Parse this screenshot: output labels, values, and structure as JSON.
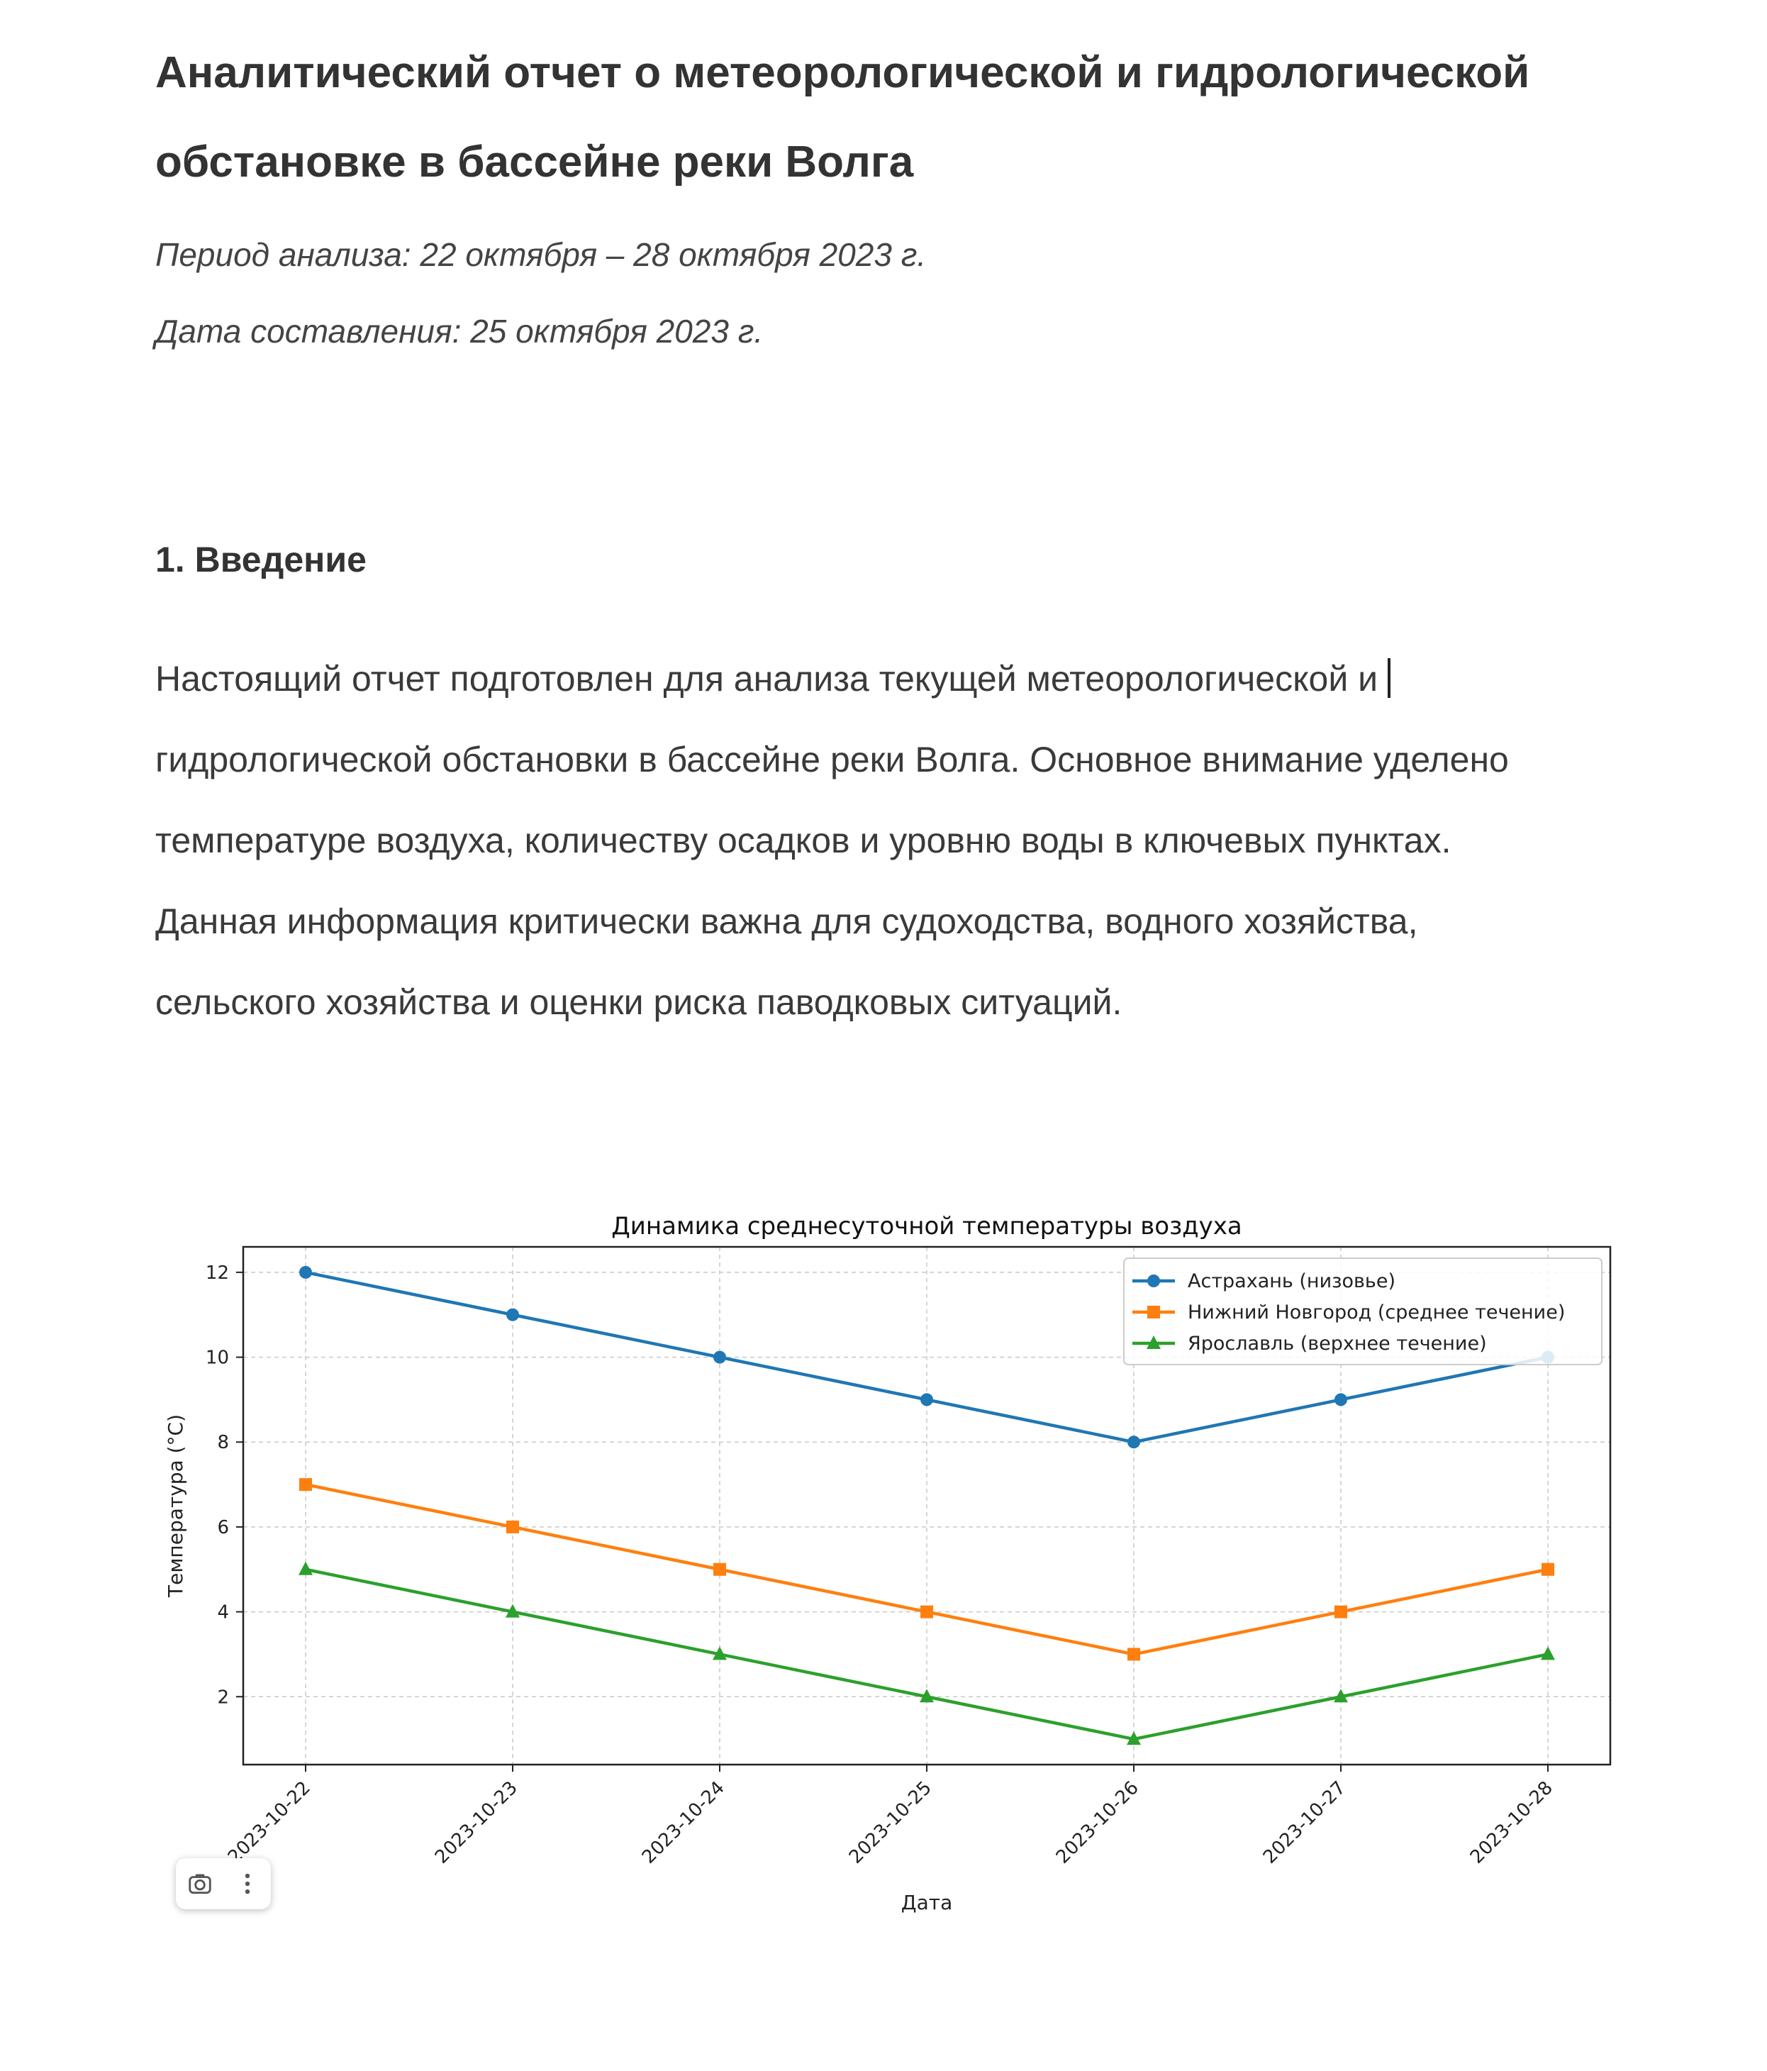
{
  "document": {
    "title": "Аналитический отчет о метеорологической и гидрологической обстановке в бассейне реки Волга",
    "period": "Период анализа: 22 октября – 28 октября 2023 г.",
    "compiled": "Дата составления: 25 октября 2023 г.",
    "section_heading": "1. Введение",
    "paragraph_lines": [
      "Настоящий отчет подготовлен для анализа текущей метеорологической и",
      "гидрологической обстановки в бассейне реки Волга. Основное внимание уделено",
      "температуре воздуха, количеству осадков и уровню воды в ключевых пунктах.",
      "Данная информация критически важна для судоходства, водного хозяйства,",
      "сельского хозяйства и оценки риска паводковых ситуаций."
    ]
  },
  "image_toolbar": {
    "icons": [
      "camera-icon",
      "more-vertical-icon"
    ]
  },
  "chart_data": {
    "type": "line",
    "title": "Динамика среднесуточной температуры воздуха",
    "xlabel": "Дата",
    "ylabel": "Температура (°C)",
    "categories": [
      "2023-10-22",
      "2023-10-23",
      "2023-10-24",
      "2023-10-25",
      "2023-10-26",
      "2023-10-27",
      "2023-10-28"
    ],
    "yticks": [
      2,
      4,
      6,
      8,
      10,
      12
    ],
    "ylim": [
      0.4,
      12.6
    ],
    "grid": true,
    "legend_position": "top-right",
    "series": [
      {
        "name": "Астрахань (низовье)",
        "color": "#1f77b4",
        "marker": "circle",
        "values": [
          12,
          11,
          10,
          9,
          8,
          9,
          10
        ]
      },
      {
        "name": "Нижний Новгород (среднее течение)",
        "color": "#ff7f0e",
        "marker": "square",
        "values": [
          7,
          6,
          5,
          4,
          3,
          4,
          5
        ]
      },
      {
        "name": "Ярославль (верхнее течение)",
        "color": "#2ca02c",
        "marker": "triangle",
        "values": [
          5,
          4,
          3,
          2,
          1,
          2,
          3
        ]
      }
    ]
  }
}
